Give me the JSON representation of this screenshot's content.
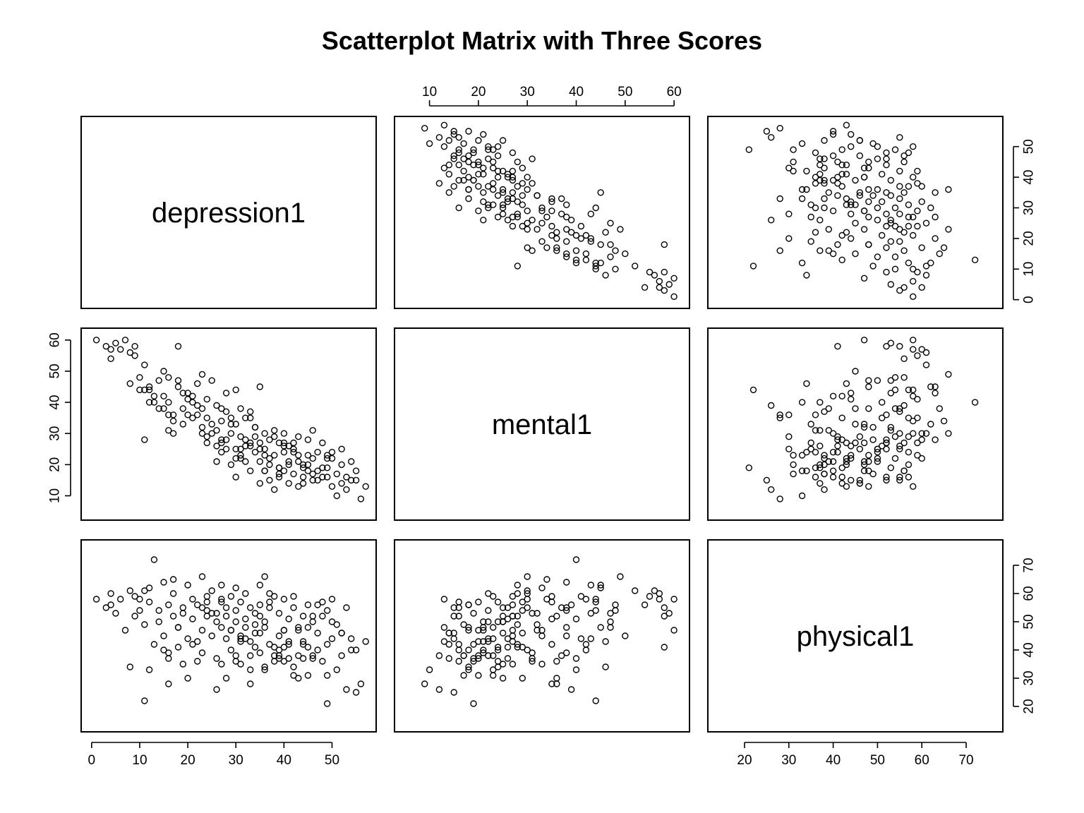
{
  "chart_data": {
    "type": "scatter",
    "title": "Scatterplot Matrix with Three Scores",
    "variables": [
      "depression1",
      "mental1",
      "physical1"
    ],
    "axes": {
      "depression1": {
        "range": [
          -1,
          58
        ],
        "ticks": [
          0,
          10,
          20,
          30,
          40,
          50
        ]
      },
      "mental1": {
        "range": [
          4,
          62
        ],
        "ticks": [
          10,
          20,
          30,
          40,
          50,
          60
        ]
      },
      "physical1": {
        "range": [
          13,
          77
        ],
        "ticks": [
          20,
          30,
          40,
          50,
          60,
          70
        ]
      }
    },
    "points": {
      "depression1": [
        1,
        3,
        4,
        4,
        5,
        6,
        7,
        8,
        9,
        9,
        10,
        10,
        11,
        11,
        12,
        12,
        13,
        14,
        15,
        15,
        16,
        16,
        16,
        17,
        17,
        18,
        18,
        19,
        19,
        20,
        20,
        21,
        21,
        22,
        22,
        23,
        23,
        23,
        24,
        24,
        25,
        25,
        26,
        26,
        26,
        27,
        27,
        27,
        28,
        28,
        28,
        29,
        29,
        29,
        30,
        30,
        30,
        30,
        31,
        31,
        31,
        32,
        32,
        32,
        33,
        33,
        33,
        34,
        34,
        34,
        35,
        35,
        35,
        35,
        36,
        36,
        36,
        37,
        37,
        37,
        38,
        38,
        38,
        39,
        39,
        39,
        40,
        40,
        40,
        41,
        41,
        41,
        42,
        42,
        43,
        43,
        44,
        44,
        44,
        45,
        45,
        46,
        46,
        47,
        47,
        48,
        48,
        49,
        49,
        50,
        50,
        51,
        51,
        52,
        52,
        53,
        54,
        55,
        56,
        57,
        15,
        18,
        22,
        25,
        28,
        31,
        34,
        37,
        40,
        43,
        46,
        49,
        52,
        20,
        26,
        33,
        39,
        45,
        12,
        17,
        24,
        30,
        36,
        42,
        48,
        8,
        14,
        21,
        27,
        35,
        41,
        47,
        53,
        19,
        29,
        38,
        44,
        50,
        16,
        23,
        32,
        40,
        46,
        54,
        11,
        27,
        36,
        43,
        49,
        24,
        31,
        39,
        45,
        13,
        33,
        42,
        55
      ],
      "mental1": [
        60,
        58,
        57,
        54,
        59,
        57,
        60,
        56,
        58,
        55,
        48,
        44,
        52,
        28,
        45,
        44,
        42,
        47,
        50,
        38,
        48,
        40,
        31,
        36,
        30,
        45,
        58,
        38,
        33,
        43,
        41,
        40,
        42,
        46,
        36,
        49,
        38,
        32,
        35,
        41,
        30,
        47,
        21,
        26,
        39,
        38,
        34,
        28,
        43,
        37,
        25,
        35,
        30,
        20,
        44,
        33,
        25,
        16,
        38,
        29,
        23,
        35,
        28,
        21,
        37,
        26,
        18,
        32,
        29,
        24,
        45,
        27,
        21,
        14,
        30,
        25,
        18,
        28,
        22,
        15,
        29,
        23,
        12,
        27,
        19,
        16,
        30,
        24,
        18,
        26,
        21,
        14,
        25,
        17,
        23,
        13,
        20,
        16,
        14,
        28,
        18,
        31,
        22,
        24,
        15,
        19,
        27,
        16,
        23,
        22,
        13,
        17,
        10,
        20,
        25,
        16,
        15,
        18,
        9,
        13,
        42,
        47,
        39,
        33,
        28,
        25,
        32,
        20,
        26,
        29,
        17,
        22,
        14,
        36,
        31,
        27,
        19,
        23,
        40,
        34,
        27,
        22,
        18,
        24,
        16,
        46,
        38,
        35,
        27,
        25,
        20,
        18,
        12,
        43,
        33,
        31,
        19,
        24,
        36,
        30,
        26,
        27,
        15,
        21,
        44,
        24,
        23,
        21,
        19,
        29,
        22,
        17,
        20,
        40,
        35,
        27,
        15
      ],
      "physical1": [
        58,
        55,
        60,
        56,
        53,
        58,
        47,
        61,
        52,
        59,
        54,
        58,
        61,
        49,
        62,
        57,
        42,
        50,
        45,
        64,
        56,
        37,
        39,
        52,
        60,
        48,
        41,
        55,
        35,
        63,
        44,
        51,
        58,
        43,
        36,
        66,
        39,
        47,
        57,
        59,
        61,
        53,
        50,
        37,
        26,
        48,
        58,
        63,
        44,
        55,
        30,
        59,
        40,
        47,
        54,
        62,
        50,
        36,
        45,
        57,
        44,
        51,
        60,
        48,
        38,
        55,
        33,
        53,
        46,
        41,
        63,
        56,
        39,
        46,
        66,
        50,
        34,
        42,
        60,
        55,
        41,
        59,
        38,
        45,
        53,
        40,
        58,
        36,
        47,
        51,
        43,
        42,
        55,
        31,
        38,
        48,
        43,
        52,
        37,
        41,
        56,
        37,
        50,
        40,
        46,
        36,
        52,
        42,
        31,
        44,
        58,
        49,
        33,
        38,
        46,
        55,
        44,
        40,
        28,
        43,
        40,
        48,
        56,
        45,
        52,
        35,
        49,
        57,
        41,
        30,
        38,
        54,
        46,
        30,
        53,
        43,
        37,
        48,
        33,
        65,
        52,
        38,
        48,
        34,
        57,
        34,
        54,
        42,
        35,
        52,
        37,
        56,
        26,
        53,
        47,
        36,
        42,
        50,
        28,
        55,
        44,
        47,
        52,
        40,
        22,
        57,
        33,
        47,
        21,
        54,
        43,
        38,
        31,
        72,
        28,
        59,
        25
      ]
    }
  }
}
